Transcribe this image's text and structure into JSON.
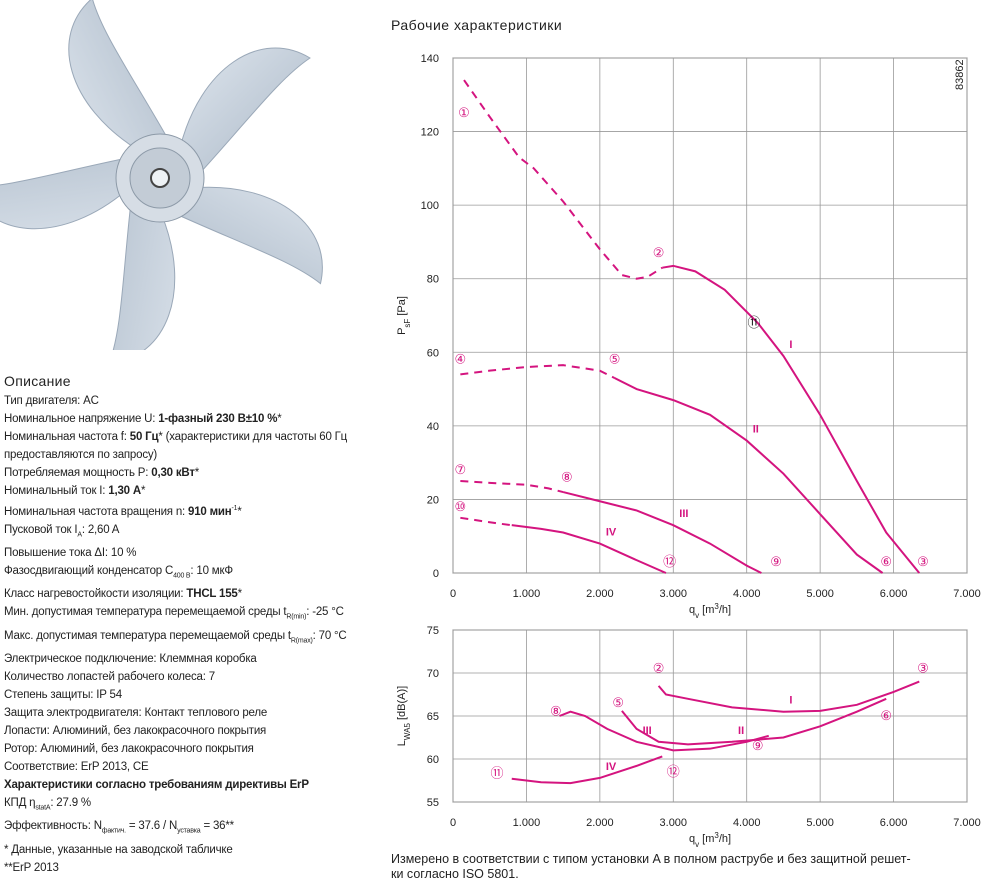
{
  "title": "Рабочие характеристики",
  "code": "83862",
  "description": {
    "heading": "Описание",
    "lines": [
      [
        "Тип двигателя: AC"
      ],
      [
        "Номинальное напряжение U: ",
        {
          "b": "1-фазный 230 В±10 %"
        },
        "*"
      ],
      [
        "Номинальная частота f: ",
        {
          "b": "50 Гц"
        },
        "* (характеристики для частоты 60 Гц"
      ],
      [
        "предоставляются по запросу)"
      ],
      [
        "Потребляемая мощность P: ",
        {
          "b": "0,30 кВт"
        },
        "*"
      ],
      [
        "Номинальный ток I: ",
        {
          "b": "1,30 А"
        },
        "*"
      ],
      [
        "Номинальная частота вращения n: ",
        {
          "b": "910 мин"
        },
        {
          "sup": "-1"
        },
        "*"
      ],
      [
        "Пусковой ток I",
        {
          "sub": "A"
        },
        ": 2,60 A"
      ],
      [
        "Повышение тока ΔI: 10 %"
      ],
      [
        "Фазосдвигающий конденсатор C",
        {
          "sub": "400 В"
        },
        ": 10 мкФ"
      ],
      [
        "Класс нагревостойкости изоляции: ",
        {
          "b": "THCL 155"
        },
        "*"
      ],
      [
        "Мин. допустимая температура перемещаемой среды t",
        {
          "sub": "R(min)"
        },
        ": -25 °C"
      ],
      [
        "Макс. допустимая температура перемещаемой среды t",
        {
          "sub": "R(max)"
        },
        ": 70 °C"
      ],
      [
        "Электрическое подключение: Клеммная коробка"
      ],
      [
        "Количество лопастей рабочего колеса: 7"
      ],
      [
        "Степень защиты: IP 54"
      ],
      [
        "Защита электродвигателя: Контакт теплового реле"
      ],
      [
        "Лопасти: Алюминий, без лакокрасочного покрытия"
      ],
      [
        "Ротор: Алюминий, без лакокрасочного покрытия"
      ],
      [
        "Соответствие: ErP 2013, CE"
      ],
      [
        {
          "b": "Характеристики согласно требованиям директивы ErP"
        }
      ],
      [
        "КПД η",
        {
          "sub": "statA"
        },
        ": 27.9 %"
      ],
      [
        "Эффективность: N",
        {
          "sub": "фактич."
        },
        " = 37.6 / N",
        {
          "sub": "уставка"
        },
        " = 36**"
      ],
      [
        "* Данные, указанные на заводской табличке"
      ],
      [
        "**ErP 2013"
      ]
    ]
  },
  "chart_data": [
    {
      "type": "line",
      "ylabel": [
        "P",
        {
          "sub": "sF"
        },
        " [Pa]"
      ],
      "xlabel": [
        "q",
        {
          "sub": "v"
        },
        " [m",
        {
          "sup": "3"
        },
        "/h]"
      ],
      "xlim": [
        0,
        7000
      ],
      "xticks": [
        0,
        {
          "value": 1000,
          "label": "1.000"
        },
        {
          "value": 2000,
          "label": "2.000"
        },
        {
          "value": 3000,
          "label": "3.000"
        },
        {
          "value": 4000,
          "label": "4.000"
        },
        {
          "value": 5000,
          "label": "5.000"
        },
        {
          "value": 6000,
          "label": "6.000"
        },
        {
          "value": 7000,
          "label": "7.000"
        }
      ],
      "ylim": [
        0,
        140
      ],
      "yticks": [
        0,
        20,
        40,
        60,
        80,
        100,
        120,
        140
      ],
      "grid": true,
      "series": [
        {
          "color": "#d4147f",
          "style": "dashed",
          "x": [
            150,
            500,
            900,
            1100,
            1500,
            2000,
            2300,
            2500,
            2650,
            2850
          ],
          "values": [
            134,
            124,
            113,
            110,
            101,
            88,
            81,
            80,
            80.5,
            83
          ]
        },
        {
          "name": "I",
          "color": "#d4147f",
          "style": "solid",
          "x": [
            2850,
            3000,
            3300,
            3700,
            4150,
            4500,
            5000,
            5500,
            5900,
            6350
          ],
          "values": [
            83,
            83.5,
            82,
            77,
            68,
            59,
            43,
            25,
            11,
            0
          ]
        },
        {
          "color": "#d4147f",
          "style": "dashed",
          "x": [
            100,
            500,
            1000,
            1500,
            2000,
            2200
          ],
          "values": [
            54,
            55,
            56,
            56.5,
            55,
            53
          ]
        },
        {
          "name": "II",
          "color": "#d4147f",
          "style": "solid",
          "x": [
            2200,
            2500,
            3000,
            3500,
            4000,
            4500,
            5000,
            5500,
            5850
          ],
          "values": [
            53,
            50,
            47,
            43,
            36,
            27,
            16,
            5,
            0
          ]
        },
        {
          "color": "#d4147f",
          "style": "dashed",
          "x": [
            100,
            500,
            1000,
            1300,
            1500
          ],
          "values": [
            25,
            24.5,
            24,
            23,
            22
          ]
        },
        {
          "name": "III",
          "color": "#d4147f",
          "style": "solid",
          "x": [
            1500,
            2000,
            2500,
            3000,
            3500,
            4000,
            4200
          ],
          "values": [
            22,
            19.5,
            17,
            13,
            8,
            2,
            0
          ]
        },
        {
          "color": "#d4147f",
          "style": "dashed",
          "x": [
            100,
            600,
            800
          ],
          "values": [
            15,
            13.5,
            13
          ]
        },
        {
          "name": "IV",
          "color": "#d4147f",
          "style": "solid",
          "x": [
            800,
            1200,
            1500,
            2000,
            2500,
            2900
          ],
          "values": [
            13,
            12,
            11,
            8,
            3.5,
            0
          ]
        }
      ],
      "annotations": [
        {
          "text": "①",
          "x": 150,
          "y": 125,
          "color": "#d4147f"
        },
        {
          "text": "②",
          "x": 2800,
          "y": 87,
          "color": "#d4147f"
        },
        {
          "text": "③",
          "x": 6400,
          "y": 3,
          "color": "#d4147f"
        },
        {
          "text": "④",
          "x": 100,
          "y": 58,
          "color": "#d4147f"
        },
        {
          "text": "⑤",
          "x": 2200,
          "y": 58,
          "color": "#d4147f"
        },
        {
          "text": "⑥",
          "x": 5900,
          "y": 3,
          "color": "#d4147f"
        },
        {
          "text": "⑦",
          "x": 100,
          "y": 28,
          "color": "#d4147f"
        },
        {
          "text": "⑧",
          "x": 1550,
          "y": 26,
          "color": "#d4147f"
        },
        {
          "text": "⑨",
          "x": 4400,
          "y": 3,
          "color": "#d4147f"
        },
        {
          "text": "⑩",
          "x": 100,
          "y": 18,
          "color": "#d4147f"
        },
        {
          "text": "⑪",
          "x": 4100,
          "y": 68,
          "color": "#111111"
        },
        {
          "text": "⑫",
          "x": 2950,
          "y": 3,
          "color": "#d4147f"
        }
      ]
    },
    {
      "type": "line",
      "ylabel": [
        "L",
        {
          "sub": "WA5"
        },
        " [dB(A)]"
      ],
      "xlabel": [
        "q",
        {
          "sub": "v"
        },
        " [m",
        {
          "sup": "3"
        },
        "/h]"
      ],
      "xlim": [
        0,
        7000
      ],
      "xticks": [
        0,
        {
          "value": 1000,
          "label": "1.000"
        },
        {
          "value": 2000,
          "label": "2.000"
        },
        {
          "value": 3000,
          "label": "3.000"
        },
        {
          "value": 4000,
          "label": "4.000"
        },
        {
          "value": 5000,
          "label": "5.000"
        },
        {
          "value": 6000,
          "label": "6.000"
        },
        {
          "value": 7000,
          "label": "7.000"
        }
      ],
      "ylim": [
        55,
        75
      ],
      "yticks": [
        55,
        60,
        65,
        70,
        75
      ],
      "grid": true,
      "series": [
        {
          "name": "I",
          "color": "#d4147f",
          "style": "solid",
          "x": [
            2800,
            2900,
            3200,
            3800,
            4500,
            5000,
            5500,
            6000,
            6350
          ],
          "values": [
            68.5,
            67.5,
            67,
            66,
            65.5,
            65.6,
            66.3,
            67.8,
            69
          ]
        },
        {
          "name": "II",
          "color": "#d4147f",
          "style": "solid",
          "x": [
            2300,
            2500,
            2800,
            3200,
            3800,
            4500,
            5000,
            5500,
            5900
          ],
          "values": [
            65.6,
            63.5,
            62,
            61.7,
            62,
            62.5,
            63.8,
            65.5,
            67
          ]
        },
        {
          "name": "III",
          "color": "#d4147f",
          "style": "solid",
          "x": [
            1450,
            1600,
            1800,
            2100,
            2500,
            3000,
            3500,
            4000,
            4300
          ],
          "values": [
            65,
            65.5,
            65,
            63.5,
            62,
            61,
            61.2,
            62,
            62.7
          ]
        },
        {
          "name": "IV",
          "color": "#d4147f",
          "style": "solid",
          "x": [
            800,
            1200,
            1600,
            2000,
            2500,
            2850
          ],
          "values": [
            57.7,
            57.3,
            57.2,
            57.8,
            59.2,
            60.3
          ]
        }
      ],
      "annotations": [
        {
          "text": "②",
          "x": 2800,
          "y": 70.5,
          "color": "#d4147f"
        },
        {
          "text": "③",
          "x": 6400,
          "y": 70.5,
          "color": "#d4147f"
        },
        {
          "text": "⑤",
          "x": 2250,
          "y": 66.5,
          "color": "#d4147f"
        },
        {
          "text": "⑥",
          "x": 5900,
          "y": 65,
          "color": "#d4147f"
        },
        {
          "text": "⑧",
          "x": 1400,
          "y": 65.5,
          "color": "#d4147f"
        },
        {
          "text": "⑨",
          "x": 4150,
          "y": 61.5,
          "color": "#d4147f"
        },
        {
          "text": "⑪",
          "x": 600,
          "y": 58.3,
          "color": "#d4147f"
        },
        {
          "text": "⑫",
          "x": 3000,
          "y": 58.5,
          "color": "#d4147f"
        }
      ]
    }
  ],
  "footnote": [
    "Измерено в соответствии с типом установки A в полном раструбе и без защитной решет-",
    "ки согласно ISO 5801."
  ]
}
